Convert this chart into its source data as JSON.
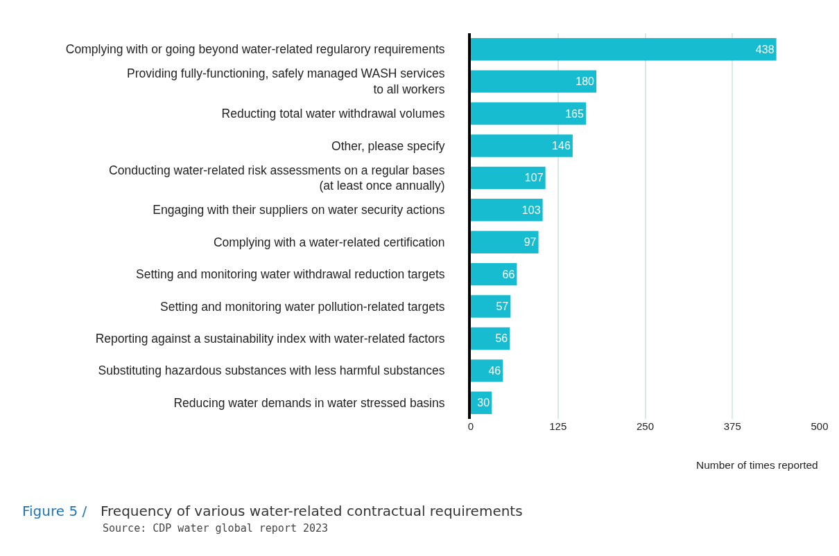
{
  "chart_data": {
    "type": "bar",
    "orientation": "horizontal",
    "title": "Frequency of various water-related contractual requirements",
    "annotations": [
      "Figure 5 /",
      "Source: CDP water global report 2023"
    ],
    "xlabel": "Number of times reported",
    "categories": [
      "Complying with or going beyond water-related regularory requirements",
      "Providing fully-functioning, safely managed WASH services\nto all workers",
      "Reducting total water withdrawal volumes",
      "Other, please specify",
      "Conducting water-related risk assessments on a regular bases\n(at least once annually)",
      "Engaging with their suppliers on water security actions",
      "Complying with a water-related certification",
      "Setting and monitoring water withdrawal reduction targets",
      "Setting and monitoring water pollution-related targets",
      "Reporting against a sustainability index with water-related factors",
      "Substituting hazardous substances with less harmful substances",
      "Reducing water demands in water stressed basins"
    ],
    "values": [
      438,
      180,
      165,
      146,
      107,
      103,
      97,
      66,
      57,
      56,
      46,
      30
    ],
    "color": "#17bcd0",
    "data_labels": true,
    "xlim": [
      0,
      500
    ],
    "xticks": [
      0,
      125,
      250,
      375,
      500
    ],
    "grid": "x"
  }
}
